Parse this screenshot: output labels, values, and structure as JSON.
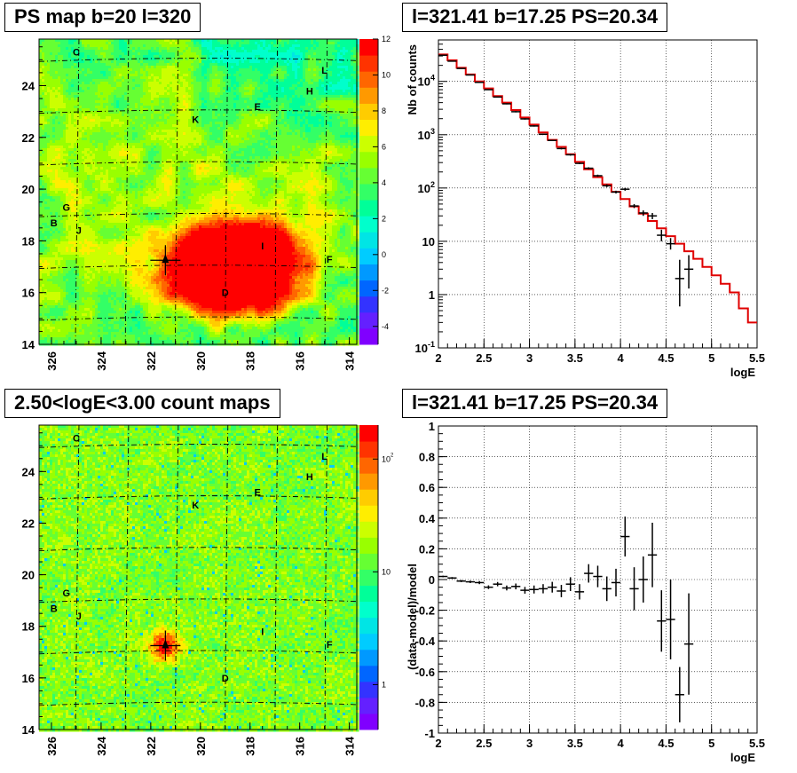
{
  "panels": {
    "tl": {
      "title": "PS map b=20 l=320"
    },
    "bl": {
      "title": "2.50<logE<3.00 count maps"
    },
    "tr": {
      "title": "l=321.41 b=17.25 PS=20.34"
    },
    "br": {
      "title": "l=321.41 b=17.25 PS=20.34"
    }
  },
  "chart_data": [
    {
      "type": "heatmap",
      "title": "PS map b=20 l=320",
      "xlim": [
        326.5,
        313.7
      ],
      "ylim": [
        14,
        25.8
      ],
      "x_ticks": [
        "326",
        "324",
        "322",
        "320",
        "318",
        "316",
        "314"
      ],
      "y_ticks": [
        "14",
        "16",
        "18",
        "20",
        "22",
        "24"
      ],
      "colorbar": {
        "scale": "linear",
        "range": [
          -5,
          12
        ],
        "ticks": [
          "12",
          "10",
          "8",
          "6",
          "4",
          "2",
          "0",
          "-2",
          "-4"
        ]
      },
      "marker": {
        "l": 321.41,
        "b": 17.25
      },
      "labels": [
        {
          "text": "C",
          "l": 325.0,
          "b": 25.3
        },
        {
          "text": "L",
          "l": 315.0,
          "b": 24.6
        },
        {
          "text": "H",
          "l": 315.6,
          "b": 23.8
        },
        {
          "text": "E",
          "l": 317.7,
          "b": 23.2
        },
        {
          "text": "K",
          "l": 320.2,
          "b": 22.7
        },
        {
          "text": "G",
          "l": 325.4,
          "b": 19.3
        },
        {
          "text": "B",
          "l": 325.9,
          "b": 18.7
        },
        {
          "text": "J",
          "l": 324.9,
          "b": 18.4
        },
        {
          "text": "I",
          "l": 317.5,
          "b": 17.8
        },
        {
          "text": "F",
          "l": 314.8,
          "b": 17.3
        },
        {
          "text": "D",
          "l": 319.0,
          "b": 16.0
        }
      ]
    },
    {
      "type": "line",
      "title": "l=321.41 b=17.25 PS=20.34",
      "xlabel": "logE",
      "ylabel": "Nb of counts",
      "yscale": "log",
      "xlim": [
        2,
        5.5
      ],
      "ylim": [
        0.1,
        60000
      ],
      "grid": true,
      "x_ticks": [
        "2",
        "2.5",
        "3",
        "3.5",
        "4",
        "4.5",
        "5",
        "5.5"
      ],
      "y_ticks": [
        "10^-1",
        "1",
        "10",
        "10^2",
        "10^3",
        "10^4"
      ],
      "series": [
        {
          "style": "step",
          "color": "#e00000",
          "x": [
            2.0,
            2.1,
            2.2,
            2.3,
            2.4,
            2.5,
            2.6,
            2.7,
            2.8,
            2.9,
            3.0,
            3.1,
            3.2,
            3.3,
            3.4,
            3.5,
            3.6,
            3.7,
            3.8,
            3.9,
            4.0,
            4.1,
            4.2,
            4.3,
            4.4,
            4.5,
            4.6,
            4.7,
            4.8,
            4.9,
            5.0,
            5.1,
            5.2,
            5.3,
            5.4
          ],
          "values": [
            32000,
            25000,
            18000,
            13500,
            10000,
            7400,
            5300,
            4000,
            2900,
            2100,
            1550,
            1100,
            800,
            590,
            430,
            310,
            225,
            160,
            117,
            85,
            62,
            45,
            33,
            24,
            17.5,
            12.5,
            9,
            6.5,
            4.7,
            3.3,
            2.3,
            1.6,
            1.1,
            0.55,
            0.3
          ]
        },
        {
          "style": "errorbar",
          "color": "#000000",
          "x": [
            2.05,
            2.15,
            2.25,
            2.35,
            2.45,
            2.55,
            2.65,
            2.75,
            2.85,
            2.95,
            3.05,
            3.15,
            3.25,
            3.35,
            3.45,
            3.55,
            3.65,
            3.75,
            3.85,
            3.95,
            4.05,
            4.15,
            4.25,
            4.35,
            4.45,
            4.55,
            4.65,
            4.75
          ],
          "values": [
            31000,
            24000,
            17500,
            13200,
            9600,
            7000,
            5100,
            3800,
            2700,
            1980,
            1460,
            1020,
            780,
            550,
            420,
            290,
            235,
            170,
            110,
            84,
            95,
            46,
            34,
            30,
            13,
            9,
            2,
            3
          ],
          "yerr_low": [
            30800,
            23800,
            17300,
            13000,
            9450,
            6870,
            5000,
            3710,
            2620,
            1920,
            1420,
            990,
            760,
            530,
            405,
            280,
            225,
            162,
            104,
            79,
            89,
            42,
            30,
            26,
            10,
            7,
            0.6,
            1.3
          ],
          "yerr_high": [
            31200,
            24200,
            17700,
            13400,
            9750,
            7130,
            5200,
            3890,
            2780,
            2040,
            1500,
            1050,
            800,
            570,
            435,
            300,
            245,
            178,
            117,
            89,
            101,
            50,
            38,
            34,
            16.5,
            11.5,
            4.5,
            5.5
          ]
        }
      ]
    },
    {
      "type": "heatmap",
      "title": "2.50<logE<3.00 count maps",
      "xlim": [
        326.5,
        313.7
      ],
      "ylim": [
        14,
        25.8
      ],
      "x_ticks": [
        "326",
        "324",
        "322",
        "320",
        "318",
        "316",
        "314"
      ],
      "y_ticks": [
        "14",
        "16",
        "18",
        "20",
        "22",
        "24"
      ],
      "colorbar": {
        "scale": "log",
        "range": [
          0.4,
          200
        ],
        "ticks": [
          "10^2",
          "10",
          "1"
        ]
      },
      "marker": {
        "l": 321.41,
        "b": 17.25
      },
      "labels": [
        {
          "text": "C",
          "l": 325.0,
          "b": 25.3
        },
        {
          "text": "L",
          "l": 315.0,
          "b": 24.6
        },
        {
          "text": "H",
          "l": 315.6,
          "b": 23.8
        },
        {
          "text": "E",
          "l": 317.7,
          "b": 23.2
        },
        {
          "text": "K",
          "l": 320.2,
          "b": 22.7
        },
        {
          "text": "G",
          "l": 325.4,
          "b": 19.3
        },
        {
          "text": "B",
          "l": 325.9,
          "b": 18.7
        },
        {
          "text": "J",
          "l": 324.9,
          "b": 18.4
        },
        {
          "text": "I",
          "l": 317.5,
          "b": 17.8
        },
        {
          "text": "F",
          "l": 314.8,
          "b": 17.3
        },
        {
          "text": "D",
          "l": 319.0,
          "b": 16.0
        }
      ]
    },
    {
      "type": "scatter",
      "title": "l=321.41 b=17.25 PS=20.34",
      "xlabel": "logE",
      "ylabel": "(data-model)/model",
      "xlim": [
        2,
        5.5
      ],
      "ylim": [
        -1,
        1
      ],
      "grid": true,
      "x_ticks": [
        "2",
        "2.5",
        "3",
        "3.5",
        "4",
        "4.5",
        "5",
        "5.5"
      ],
      "y_ticks": [
        "-1",
        "-0.8",
        "-0.6",
        "-0.4",
        "-0.2",
        "0",
        "0.2",
        "0.4",
        "0.6",
        "0.8",
        "1"
      ],
      "series": [
        {
          "style": "errorbar",
          "color": "#000000",
          "x": [
            2.05,
            2.15,
            2.25,
            2.35,
            2.45,
            2.55,
            2.65,
            2.75,
            2.85,
            2.95,
            3.05,
            3.15,
            3.25,
            3.35,
            3.45,
            3.55,
            3.65,
            3.75,
            3.85,
            3.95,
            4.05,
            4.15,
            4.25,
            4.35,
            4.45,
            4.55,
            4.65,
            4.75
          ],
          "values": [
            0.02,
            0.01,
            -0.01,
            -0.015,
            -0.02,
            -0.05,
            -0.03,
            -0.055,
            -0.045,
            -0.07,
            -0.065,
            -0.06,
            -0.05,
            -0.075,
            -0.03,
            -0.08,
            0.04,
            0.02,
            -0.06,
            -0.02,
            0.28,
            -0.06,
            0.0,
            0.16,
            -0.27,
            -0.26,
            -0.75,
            -0.42
          ],
          "yerr": [
            0.005,
            0.006,
            0.007,
            0.008,
            0.01,
            0.012,
            0.014,
            0.016,
            0.019,
            0.022,
            0.026,
            0.03,
            0.035,
            0.04,
            0.045,
            0.05,
            0.06,
            0.07,
            0.08,
            0.09,
            0.13,
            0.14,
            0.15,
            0.21,
            0.2,
            0.26,
            0.18,
            0.33
          ]
        }
      ]
    }
  ]
}
